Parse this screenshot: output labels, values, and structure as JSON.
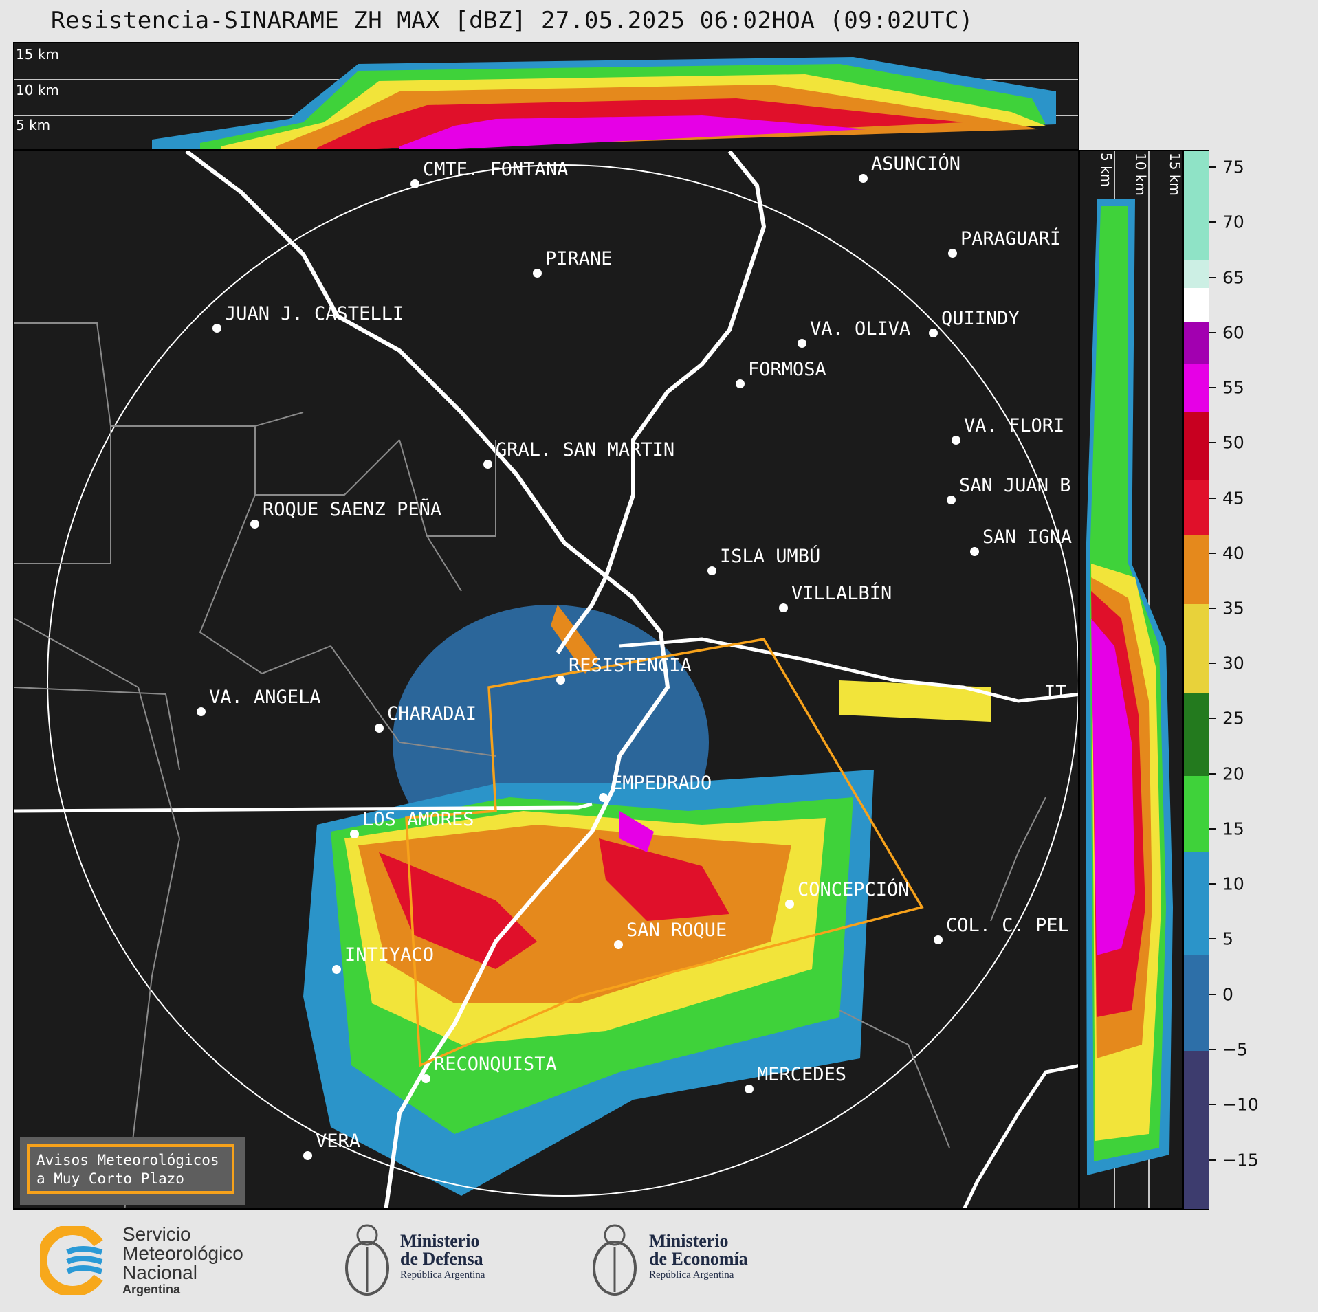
{
  "title": "Resistencia-SINARAME ZH MAX [dBZ] 27.05.2025 06:02HOA (09:02UTC)",
  "top_panel": {
    "height_labels": [
      "15 km",
      "10 km",
      "5 km"
    ]
  },
  "side_panel": {
    "height_labels": [
      "5 km",
      "10 km",
      "15 km"
    ]
  },
  "colorbar": {
    "unit": "dBZ",
    "ticks": [
      "75",
      "70",
      "65",
      "60",
      "55",
      "50",
      "45",
      "40",
      "35",
      "30",
      "25",
      "20",
      "15",
      "10",
      "5",
      "0",
      "−5",
      "−10",
      "−15"
    ],
    "colors": {
      "purple_dark": "#3d3c6e",
      "blue": "#2b94c9",
      "green": "#3fd23a",
      "yellow": "#f2e43a",
      "orange": "#e5891c",
      "red": "#e0102a",
      "magenta": "#e600e6",
      "white": "#ffffff",
      "teal": "#7ee0c0"
    }
  },
  "cities": [
    {
      "name": "CMTE. FONTANA"
    },
    {
      "name": "PIRANE"
    },
    {
      "name": "JUAN J. CASTELLI"
    },
    {
      "name": "ASUNCIÓN"
    },
    {
      "name": "PARAGUARÍ"
    },
    {
      "name": "QUIINDY"
    },
    {
      "name": "VA. OLIVA"
    },
    {
      "name": "FORMOSA"
    },
    {
      "name": "VA. FLORI"
    },
    {
      "name": "GRAL. SAN MARTIN"
    },
    {
      "name": "SAN JUAN B"
    },
    {
      "name": "ROQUE SAENZ PEÑA"
    },
    {
      "name": "SAN IGNA"
    },
    {
      "name": "ISLA UMBÚ"
    },
    {
      "name": "VILLALBÍN"
    },
    {
      "name": "RESISTENCIA"
    },
    {
      "name": "VA. ANGELA"
    },
    {
      "name": "CHARADAI"
    },
    {
      "name": "IT"
    },
    {
      "name": "EMPEDRADO"
    },
    {
      "name": "LOS AMORES"
    },
    {
      "name": "CONCEPCIÓN"
    },
    {
      "name": "SAN ROQUE"
    },
    {
      "name": "COL. C. PEL"
    },
    {
      "name": "INTIYACO"
    },
    {
      "name": "RECONQUISTA"
    },
    {
      "name": "MERCEDES"
    },
    {
      "name": "VERA"
    }
  ],
  "avisos": {
    "line1": "Avisos Meteorológicos",
    "line2": "a Muy Corto Plazo"
  },
  "logos": {
    "smn": {
      "line1": "Servicio",
      "line2": "Meteorológico",
      "line3": "Nacional",
      "line4": "Argentina"
    },
    "defensa": {
      "line1": "Ministerio",
      "line2": "de Defensa",
      "line3": "República Argentina"
    },
    "economia": {
      "line1": "Ministerio",
      "line2": "de Economía",
      "line3": "República Argentina"
    }
  }
}
